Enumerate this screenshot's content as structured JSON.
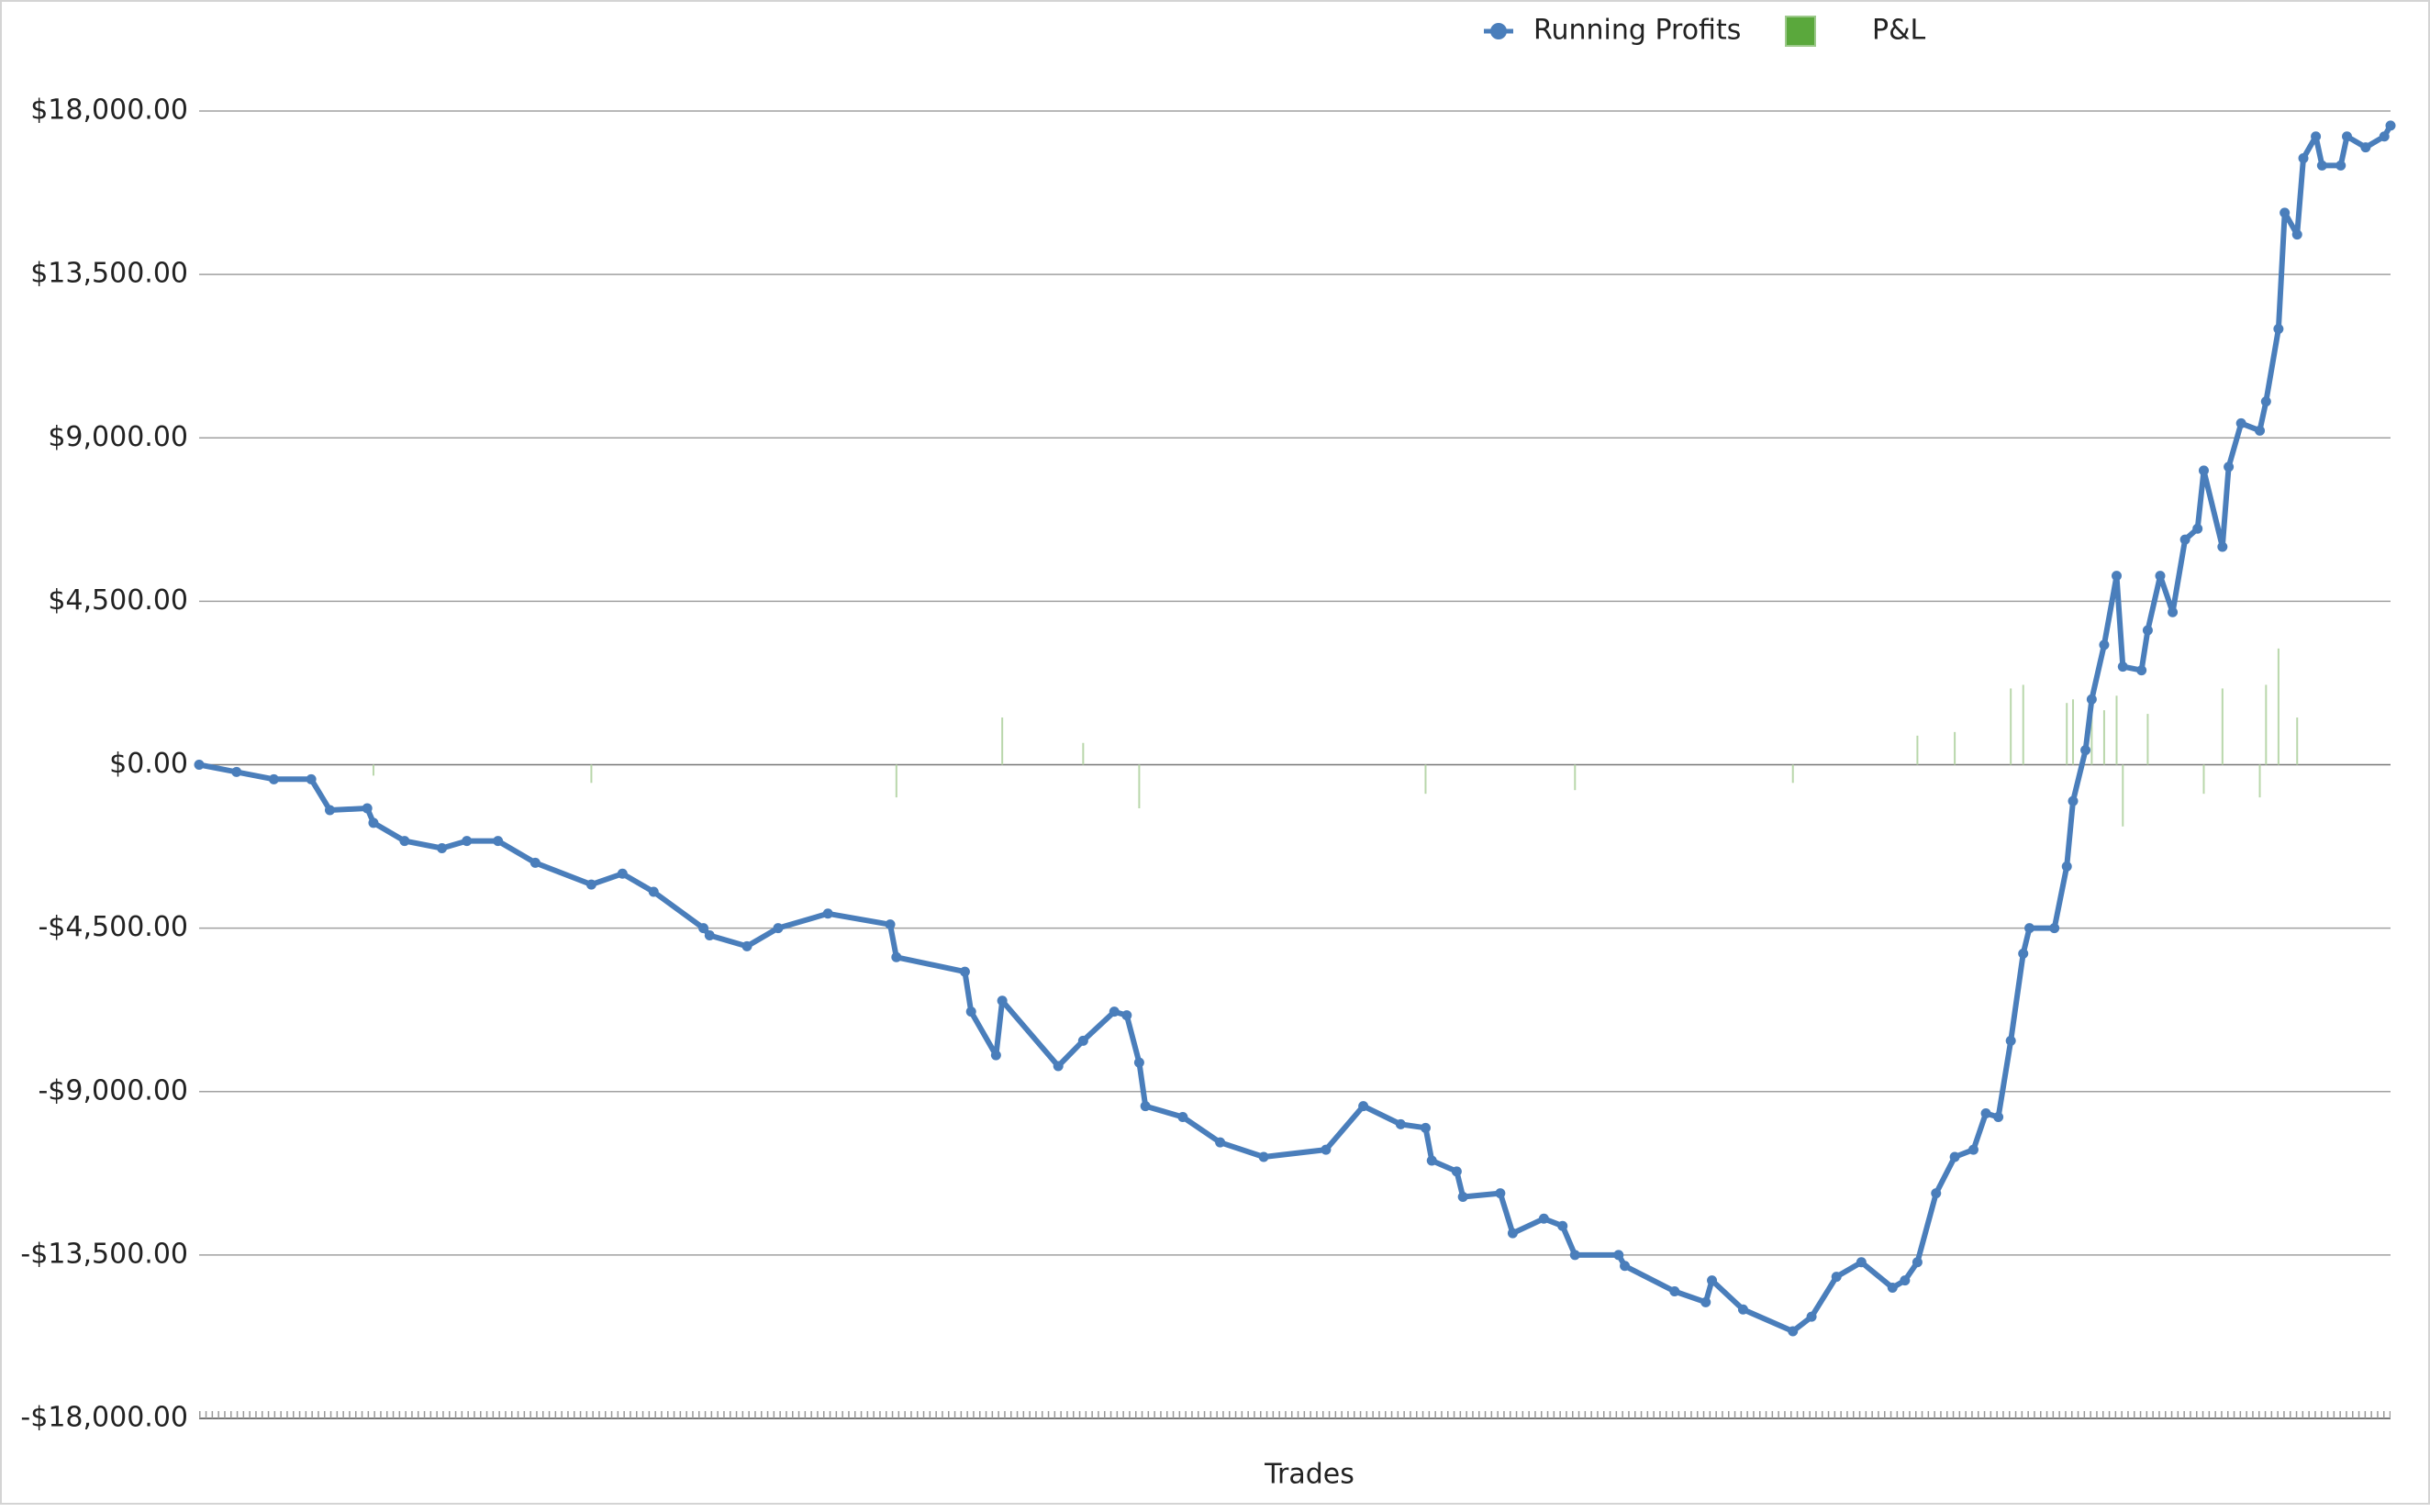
{
  "chart_data": {
    "type": "line",
    "xlabel": "Trades",
    "xlim": [
      0,
      352
    ],
    "ylim": [
      -18000,
      18000
    ],
    "yticks": [
      {
        "value": -18000,
        "label": "-$18,000.00"
      },
      {
        "value": -13500,
        "label": "-$13,500.00"
      },
      {
        "value": -9000,
        "label": "-$9,000.00"
      },
      {
        "value": -4500,
        "label": "-$4,500.00"
      },
      {
        "value": 0,
        "label": "$0.00"
      },
      {
        "value": 4500,
        "label": "$4,500.00"
      },
      {
        "value": 9000,
        "label": "$9,000.00"
      },
      {
        "value": 13500,
        "label": "$13,500.00"
      },
      {
        "value": 18000,
        "label": "$18,000.00"
      }
    ],
    "grid": true,
    "legend": "top",
    "series": [
      {
        "name": "Running Profits",
        "color": "#4a7ebb",
        "type": "line",
        "x": [
          0,
          6,
          12,
          18,
          21,
          27,
          28,
          33,
          39,
          43,
          48,
          54,
          63,
          68,
          73,
          81,
          82,
          88,
          93,
          101,
          111,
          112,
          123,
          124,
          128,
          129,
          138,
          142,
          147,
          149,
          151,
          152,
          158,
          164,
          171,
          181,
          187,
          193,
          197,
          198,
          202,
          203,
          209,
          211,
          216,
          219,
          221,
          228,
          229,
          237,
          242,
          243,
          248,
          256,
          259,
          263,
          267,
          272,
          274,
          276,
          279,
          282,
          285,
          287,
          289,
          291,
          293,
          294,
          298,
          300,
          301,
          303,
          304,
          306,
          308,
          309,
          312,
          313,
          315,
          317,
          319,
          321,
          322,
          325,
          326,
          328,
          331,
          332,
          334,
          335,
          337,
          338,
          340,
          341,
          344,
          345,
          348,
          351,
          352
        ],
        "values": [
          0,
          -200,
          -400,
          -400,
          -1250,
          -1200,
          -1600,
          -2100,
          -2300,
          -2100,
          -2100,
          -2700,
          -3300,
          -3000,
          -3500,
          -4500,
          -4700,
          -5000,
          -4500,
          -4100,
          -4400,
          -5300,
          -5700,
          -6800,
          -8000,
          -6500,
          -8300,
          -7600,
          -6800,
          -6900,
          -8200,
          -9400,
          -9700,
          -10400,
          -10800,
          -10600,
          -9400,
          -9900,
          -10000,
          -10900,
          -11200,
          -11900,
          -11800,
          -12900,
          -12500,
          -12700,
          -13500,
          -13500,
          -13800,
          -14500,
          -14800,
          -14200,
          -15000,
          -15600,
          -15200,
          -14100,
          -13700,
          -14400,
          -14200,
          -13700,
          -11800,
          -10800,
          -10600,
          -9600,
          -9700,
          -7600,
          -5200,
          -4500,
          -4500,
          -2800,
          -1000,
          400,
          1800,
          3300,
          5200,
          2700,
          2600,
          3700,
          5200,
          4200,
          6200,
          6500,
          8100,
          6000,
          8200,
          9400,
          9200,
          10000,
          12000,
          15200,
          14600,
          16700,
          17300,
          16500,
          16500,
          17300,
          17000,
          17300,
          17600
        ]
      },
      {
        "name": "P&L",
        "color": "#b9d7ab",
        "type": "bar",
        "x": [
          28,
          63,
          112,
          129,
          142,
          151,
          197,
          221,
          256,
          276,
          282,
          291,
          293,
          300,
          301,
          304,
          306,
          308,
          309,
          313,
          322,
          325,
          331,
          332,
          334,
          337
        ],
        "values": [
          -300,
          -500,
          -900,
          1300,
          600,
          -1200,
          -800,
          -700,
          -500,
          800,
          900,
          2100,
          2200,
          1700,
          1800,
          1400,
          1500,
          1900,
          -1700,
          1400,
          -800,
          2100,
          -900,
          2200,
          3200,
          1300
        ]
      }
    ]
  }
}
